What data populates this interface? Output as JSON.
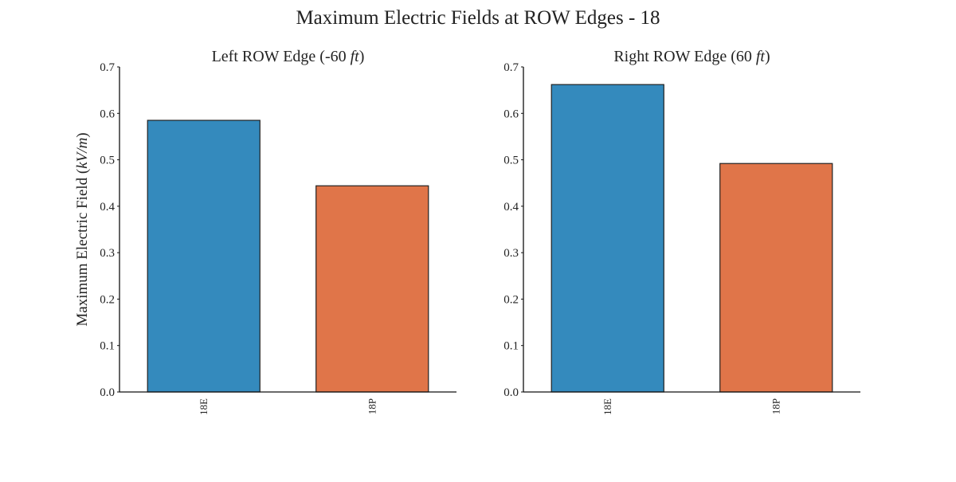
{
  "figure": {
    "suptitle": "Maximum Electric Fields at ROW Edges - 18"
  },
  "chart_data": [
    {
      "type": "bar",
      "title": "Left ROW Edge (-60 ft)",
      "title_prefix": "Left ROW Edge (-60 ",
      "title_unit": "ft",
      "title_suffix": ")",
      "xlabel": "",
      "ylabel": "Maximum Electric Field (kV/m)",
      "ylabel_prefix": "Maximum Electric Field (",
      "ylabel_unit": "kV/m",
      "ylabel_suffix": ")",
      "categories": [
        "18E",
        "18P"
      ],
      "values": [
        0.585,
        0.444
      ],
      "colors": [
        "#348ABD",
        "#E07549"
      ],
      "ylim": [
        0,
        0.7
      ],
      "yticks": [
        "0.0",
        "0.1",
        "0.2",
        "0.3",
        "0.4",
        "0.5",
        "0.6",
        "0.7"
      ],
      "grid": false
    },
    {
      "type": "bar",
      "title": "Right ROW Edge (60 ft)",
      "title_prefix": "Right ROW Edge (60 ",
      "title_unit": "ft",
      "title_suffix": ")",
      "xlabel": "",
      "ylabel": "",
      "categories": [
        "18E",
        "18P"
      ],
      "values": [
        0.662,
        0.492
      ],
      "colors": [
        "#348ABD",
        "#E07549"
      ],
      "ylim": [
        0,
        0.7
      ],
      "yticks": [
        "0.0",
        "0.1",
        "0.2",
        "0.3",
        "0.4",
        "0.5",
        "0.6",
        "0.7"
      ],
      "grid": false
    }
  ]
}
